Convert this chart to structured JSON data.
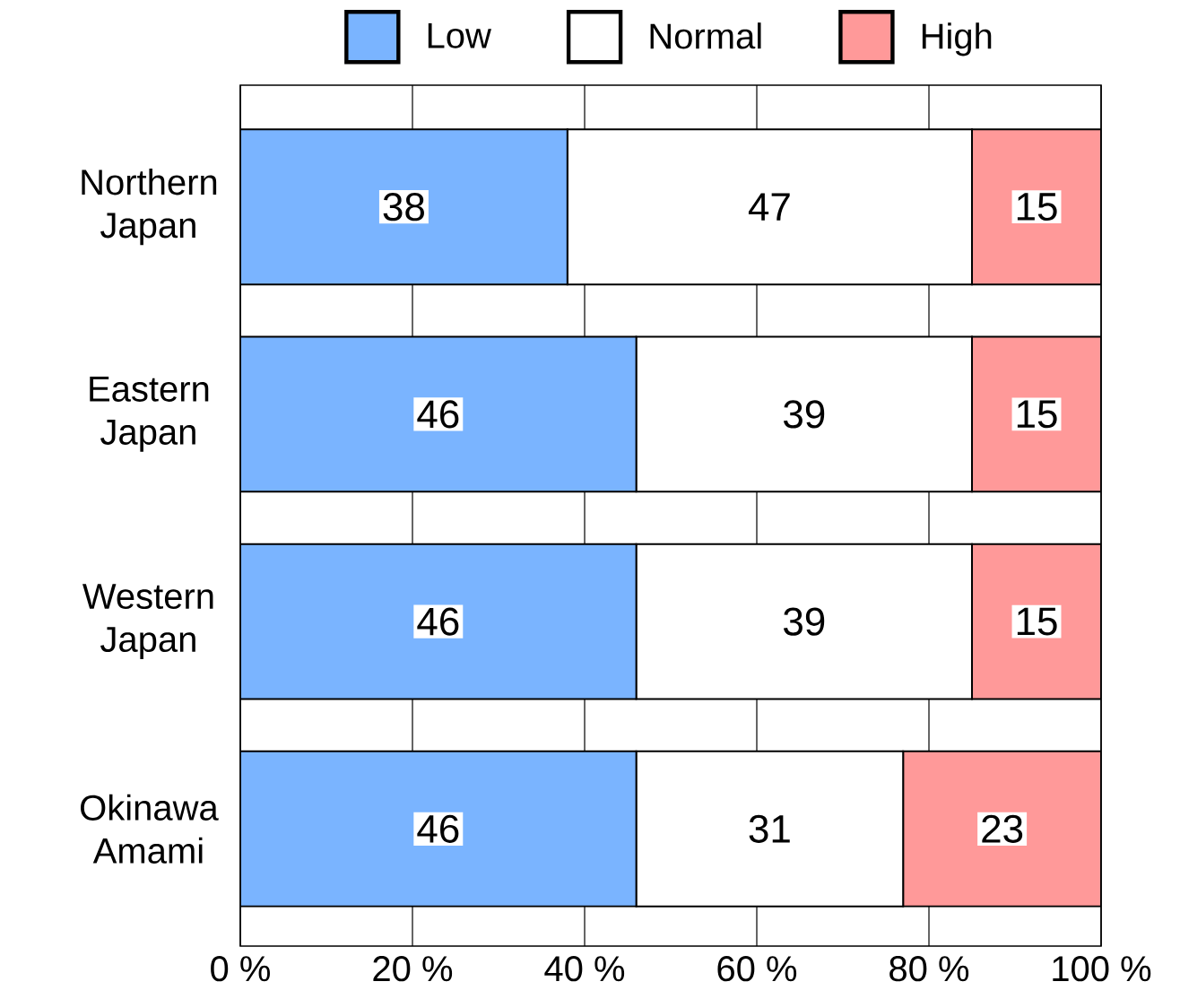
{
  "chart_data": {
    "type": "bar",
    "orientation": "horizontal",
    "stacked": true,
    "categories": [
      "Northern Japan",
      "Eastern Japan",
      "Western Japan",
      "Okinawa Amami"
    ],
    "series": [
      {
        "name": "Low",
        "color": "#7ab4ff",
        "values": [
          38,
          46,
          46,
          46
        ]
      },
      {
        "name": "Normal",
        "color": "#ffffff",
        "values": [
          47,
          39,
          39,
          31
        ]
      },
      {
        "name": "High",
        "color": "#ff9999",
        "values": [
          15,
          15,
          15,
          23
        ]
      }
    ],
    "xlim": [
      0,
      100
    ],
    "xticks": [
      {
        "value": 0,
        "label": "0 %"
      },
      {
        "value": 20,
        "label": "20 %"
      },
      {
        "value": 40,
        "label": "40 %"
      },
      {
        "value": 60,
        "label": "60 %"
      },
      {
        "value": 80,
        "label": "80 %"
      },
      {
        "value": 100,
        "label": "100 %"
      }
    ],
    "grid": "x",
    "legend": "top",
    "data_labels": true
  }
}
